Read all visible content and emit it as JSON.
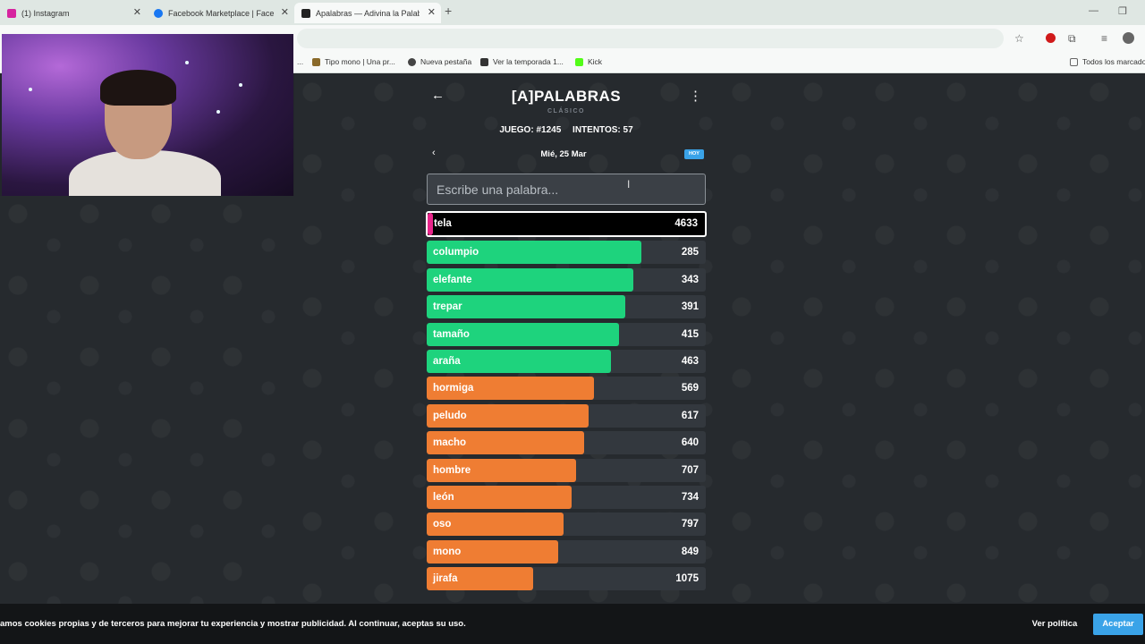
{
  "browser": {
    "tabs": [
      {
        "label": "(1) Instagram",
        "color": "#d6249f",
        "active": false
      },
      {
        "label": "Facebook Marketplace | Facebook",
        "color": "#1877f2",
        "active": false
      },
      {
        "label": "Apalabras — Adivina la Palabra",
        "color": "#222222",
        "active": true
      }
    ],
    "new_tab": "+",
    "bookmarks": [
      {
        "label": "Tipo mono | Una pr...",
        "color": "#8a6a2a"
      },
      {
        "label": "Nueva pestaña",
        "color": "#444444"
      },
      {
        "label": "Ver la temporada 1...",
        "color": "#333333"
      },
      {
        "label": "Kick",
        "color": "#53fc18"
      }
    ],
    "all_bookmarks": "Todos los marcadores",
    "bookmarks_overflow": "..."
  },
  "game": {
    "back_icon": "←",
    "title": "[A]PALABRAS",
    "subtitle": "CLÁSICO",
    "menu_icon": "⋮",
    "game_label": "JUEGO: #1245",
    "attempts_label": "INTENTOS: 57",
    "prev_icon": "‹",
    "date": "Mié, 25 Mar",
    "today_badge": "HOY",
    "search_placeholder": "Escribe una palabra..."
  },
  "guesses": [
    {
      "word": "tela",
      "rank": "4633",
      "fill": 0.02,
      "color": "#e8258a",
      "current": true
    },
    {
      "word": "columpio",
      "rank": "285",
      "fill": 0.77,
      "color": "#1ed37d"
    },
    {
      "word": "elefante",
      "rank": "343",
      "fill": 0.74,
      "color": "#1ed37d"
    },
    {
      "word": "trepar",
      "rank": "391",
      "fill": 0.71,
      "color": "#1ed37d"
    },
    {
      "word": "tamaño",
      "rank": "415",
      "fill": 0.69,
      "color": "#1ed37d"
    },
    {
      "word": "araña",
      "rank": "463",
      "fill": 0.66,
      "color": "#1ed37d"
    },
    {
      "word": "hormiga",
      "rank": "569",
      "fill": 0.6,
      "color": "#ef7d33"
    },
    {
      "word": "peludo",
      "rank": "617",
      "fill": 0.58,
      "color": "#ef7d33"
    },
    {
      "word": "macho",
      "rank": "640",
      "fill": 0.565,
      "color": "#ef7d33"
    },
    {
      "word": "hombre",
      "rank": "707",
      "fill": 0.535,
      "color": "#ef7d33"
    },
    {
      "word": "león",
      "rank": "734",
      "fill": 0.52,
      "color": "#ef7d33"
    },
    {
      "word": "oso",
      "rank": "797",
      "fill": 0.49,
      "color": "#ef7d33"
    },
    {
      "word": "mono",
      "rank": "849",
      "fill": 0.47,
      "color": "#ef7d33"
    },
    {
      "word": "jirafa",
      "rank": "1075",
      "fill": 0.38,
      "color": "#ef7d33"
    }
  ],
  "cookie": {
    "text": "amos cookies propias y de terceros para mejorar tu experiencia y mostrar publicidad. Al continuar, aceptas su uso.",
    "policy": "Ver política",
    "accept": "Aceptar"
  }
}
